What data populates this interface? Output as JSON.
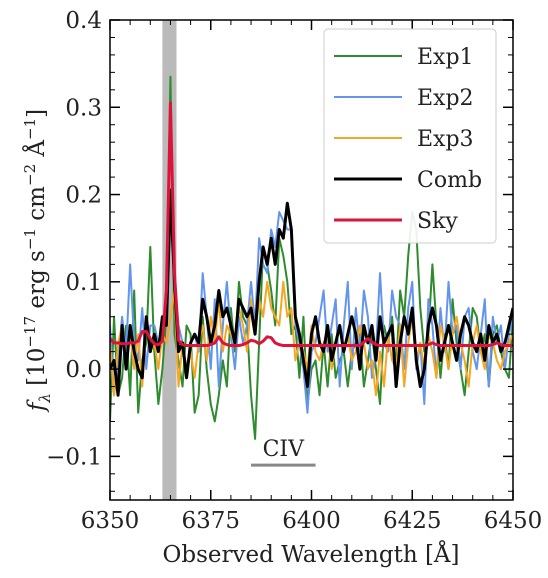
{
  "chart_data": {
    "type": "line",
    "title": "",
    "xlabel": "Observed Wavelength [Å]",
    "ylabel": "f_λ [10^−17 erg s^−1 cm^−2 Å^−1]",
    "ylabel_parts": {
      "f": "f",
      "lambda_sub": "λ",
      "open": " [10",
      "exp1": "−17",
      "erg": " erg s",
      "exp2": "−1",
      "cm": " cm",
      "exp3": "−2",
      "ang": " Å",
      "exp4": "−1",
      "close": "]"
    },
    "xlim": [
      6350,
      6450
    ],
    "ylim": [
      -0.15,
      0.4
    ],
    "xticks": [
      6350,
      6375,
      6400,
      6425,
      6450
    ],
    "yticks": [
      -0.1,
      0.0,
      0.1,
      0.2,
      0.3,
      0.4
    ],
    "xtick_labels": [
      "6350",
      "6375",
      "6400",
      "6425",
      "6450"
    ],
    "ytick_labels": [
      "−0.1",
      "0.0",
      "0.1",
      "0.2",
      "0.3",
      "0.4"
    ],
    "legend_position": "top-right",
    "grid": false,
    "shaded_band": {
      "x": [
        6363,
        6366.5
      ],
      "color": "#a9a9a9"
    },
    "annotation": {
      "label": "CIV",
      "x": [
        6385,
        6401
      ],
      "y": -0.11,
      "color": "#888888"
    },
    "x": [
      6350,
      6351,
      6352,
      6353,
      6354,
      6355,
      6356,
      6357,
      6358,
      6359,
      6360,
      6361,
      6362,
      6363,
      6364,
      6365,
      6366,
      6367,
      6368,
      6369,
      6370,
      6371,
      6372,
      6373,
      6374,
      6375,
      6376,
      6377,
      6378,
      6379,
      6380,
      6381,
      6382,
      6383,
      6384,
      6385,
      6386,
      6387,
      6388,
      6389,
      6390,
      6391,
      6392,
      6393,
      6394,
      6395,
      6396,
      6397,
      6398,
      6399,
      6400,
      6401,
      6402,
      6403,
      6404,
      6405,
      6406,
      6407,
      6408,
      6409,
      6410,
      6411,
      6412,
      6413,
      6414,
      6415,
      6416,
      6417,
      6418,
      6419,
      6420,
      6421,
      6422,
      6423,
      6424,
      6425,
      6426,
      6427,
      6428,
      6429,
      6430,
      6431,
      6432,
      6433,
      6434,
      6435,
      6436,
      6437,
      6438,
      6439,
      6440,
      6441,
      6442,
      6443,
      6444,
      6445,
      6446,
      6447,
      6448,
      6449,
      6450
    ],
    "series": [
      {
        "name": "Exp1",
        "color": "#2e8b2e",
        "width": 2,
        "values": [
          -0.06,
          0.06,
          -0.03,
          -0.01,
          0.05,
          -0.03,
          0.09,
          -0.05,
          0.01,
          0.03,
          0.14,
          0.02,
          -0.04,
          0.0,
          0.06,
          0.335,
          0.04,
          0.01,
          -0.02,
          0.05,
          0.04,
          -0.05,
          -0.03,
          0.06,
          0.0,
          -0.04,
          -0.06,
          -0.03,
          0.01,
          -0.02,
          0.07,
          0.02,
          0.1,
          0.06,
          0.05,
          -0.03,
          -0.08,
          0.03,
          0.14,
          0.12,
          0.09,
          0.05,
          0.15,
          0.13,
          0.1,
          0.04,
          0.05,
          -0.01,
          0.06,
          -0.04,
          0.0,
          0.01,
          -0.03,
          0.03,
          -0.02,
          0.04,
          -0.01,
          0.01,
          0.02,
          -0.02,
          0.02,
          0.03,
          0.04,
          -0.02,
          0.01,
          0.04,
          0.0,
          -0.04,
          0.05,
          0.03,
          0.06,
          0.0,
          0.09,
          0.06,
          0.13,
          0.18,
          0.16,
          0.07,
          0.02,
          0.04,
          0.12,
          0.05,
          -0.01,
          0.04,
          0.0,
          0.08,
          0.03,
          0.0,
          -0.03,
          0.02,
          0.07,
          0.06,
          0.02,
          0.04,
          -0.02,
          0.04,
          0.05,
          0.02,
          0.0,
          -0.01,
          0.06
        ]
      },
      {
        "name": "Exp2",
        "color": "#6495ed",
        "width": 2,
        "values": [
          0.05,
          -0.03,
          0.01,
          0.06,
          0.02,
          0.12,
          0.03,
          0.01,
          0.07,
          0.0,
          0.05,
          0.05,
          0.03,
          0.05,
          0.06,
          0.17,
          0.11,
          0.05,
          0.03,
          0.0,
          0.03,
          0.04,
          0.02,
          0.11,
          0.06,
          0.0,
          0.08,
          -0.02,
          0.05,
          0.1,
          0.04,
          0.0,
          0.06,
          0.03,
          0.05,
          0.1,
          0.05,
          0.15,
          0.12,
          0.11,
          0.16,
          0.14,
          0.18,
          0.17,
          0.16,
          0.16,
          0.05,
          0.03,
          0.0,
          -0.05,
          0.02,
          0.03,
          0.06,
          0.09,
          0.02,
          0.05,
          0.08,
          -0.02,
          0.05,
          0.1,
          0.0,
          0.07,
          0.02,
          0.09,
          0.06,
          -0.01,
          0.02,
          0.11,
          0.03,
          0.02,
          0.09,
          0.06,
          0.05,
          0.0,
          0.07,
          0.1,
          0.0,
          0.03,
          -0.04,
          0.08,
          0.05,
          -0.01,
          0.07,
          0.02,
          0.1,
          0.04,
          0.05,
          0.0,
          0.06,
          0.07,
          0.02,
          0.0,
          0.04,
          0.08,
          -0.02,
          0.06,
          0.03,
          0.05,
          0.0,
          0.04,
          0.06
        ]
      },
      {
        "name": "Exp3",
        "color": "#f5a623",
        "width": 2,
        "values": [
          0.03,
          -0.03,
          0.03,
          0.05,
          0.01,
          0.04,
          0.0,
          0.04,
          -0.02,
          0.05,
          0.02,
          0.03,
          0.0,
          0.04,
          0.03,
          0.06,
          0.09,
          -0.02,
          0.03,
          0.0,
          0.02,
          -0.01,
          0.03,
          0.05,
          0.01,
          0.06,
          0.03,
          0.08,
          0.02,
          0.05,
          0.04,
          0.03,
          0.07,
          0.05,
          0.02,
          0.08,
          0.04,
          0.08,
          0.06,
          0.1,
          0.07,
          0.06,
          0.05,
          0.1,
          0.06,
          0.07,
          0.01,
          0.03,
          0.02,
          0.0,
          0.05,
          0.02,
          0.01,
          0.03,
          0.04,
          0.0,
          0.03,
          0.05,
          0.02,
          0.04,
          0.01,
          0.02,
          0.05,
          0.03,
          0.0,
          0.01,
          -0.03,
          0.02,
          -0.02,
          0.04,
          0.01,
          0.0,
          0.05,
          -0.02,
          0.03,
          0.06,
          0.01,
          0.03,
          0.0,
          0.04,
          0.02,
          -0.01,
          0.05,
          0.03,
          0.0,
          0.04,
          0.06,
          0.03,
          0.01,
          -0.02,
          0.03,
          0.05,
          0.02,
          0.0,
          0.04,
          0.03,
          0.01,
          0.0,
          0.02,
          0.03,
          0.04
        ]
      },
      {
        "name": "Comb",
        "color": "#000000",
        "width": 3,
        "values": [
          0.0,
          0.01,
          -0.03,
          0.05,
          0.0,
          0.05,
          0.02,
          0.0,
          -0.01,
          0.06,
          0.02,
          0.04,
          0.02,
          0.06,
          0.05,
          0.205,
          0.1,
          0.02,
          0.03,
          -0.01,
          0.03,
          0.04,
          0.03,
          0.08,
          0.06,
          0.03,
          0.05,
          0.09,
          0.06,
          0.07,
          0.05,
          0.03,
          0.08,
          0.07,
          0.06,
          0.07,
          0.04,
          0.1,
          0.14,
          0.12,
          0.15,
          0.12,
          0.16,
          0.15,
          0.19,
          0.16,
          0.06,
          0.04,
          0.01,
          -0.02,
          0.04,
          0.06,
          0.03,
          0.02,
          0.05,
          0.01,
          0.03,
          0.05,
          0.02,
          0.04,
          0.06,
          0.04,
          0.0,
          0.05,
          0.03,
          0.05,
          0.01,
          0.06,
          0.03,
          0.04,
          0.05,
          -0.02,
          0.03,
          0.06,
          0.04,
          0.07,
          0.01,
          -0.02,
          0.0,
          0.05,
          0.07,
          0.05,
          0.01,
          0.03,
          0.05,
          0.03,
          0.01,
          0.04,
          0.06,
          0.05,
          0.03,
          0.02,
          0.04,
          0.01,
          0.05,
          0.03,
          0.04,
          0.02,
          0.03,
          0.05,
          0.07
        ]
      },
      {
        "name": "Sky",
        "color": "#dc143c",
        "width": 3,
        "values": [
          0.035,
          0.03,
          0.03,
          0.029,
          0.029,
          0.03,
          0.03,
          0.032,
          0.043,
          0.043,
          0.035,
          0.029,
          0.028,
          0.032,
          0.09,
          0.305,
          0.11,
          0.033,
          0.028,
          0.027,
          0.027,
          0.027,
          0.027,
          0.027,
          0.027,
          0.028,
          0.03,
          0.037,
          0.03,
          0.028,
          0.027,
          0.027,
          0.027,
          0.028,
          0.03,
          0.033,
          0.032,
          0.029,
          0.032,
          0.037,
          0.036,
          0.03,
          0.028,
          0.027,
          0.027,
          0.027,
          0.027,
          0.027,
          0.027,
          0.027,
          0.027,
          0.027,
          0.027,
          0.027,
          0.027,
          0.027,
          0.027,
          0.027,
          0.027,
          0.027,
          0.027,
          0.027,
          0.027,
          0.031,
          0.035,
          0.031,
          0.028,
          0.027,
          0.027,
          0.027,
          0.027,
          0.027,
          0.027,
          0.027,
          0.027,
          0.027,
          0.027,
          0.027,
          0.027,
          0.028,
          0.03,
          0.028,
          0.027,
          0.027,
          0.027,
          0.027,
          0.027,
          0.027,
          0.027,
          0.027,
          0.027,
          0.027,
          0.027,
          0.027,
          0.027,
          0.028,
          0.03,
          0.028,
          0.027,
          0.027,
          0.027
        ]
      }
    ]
  }
}
